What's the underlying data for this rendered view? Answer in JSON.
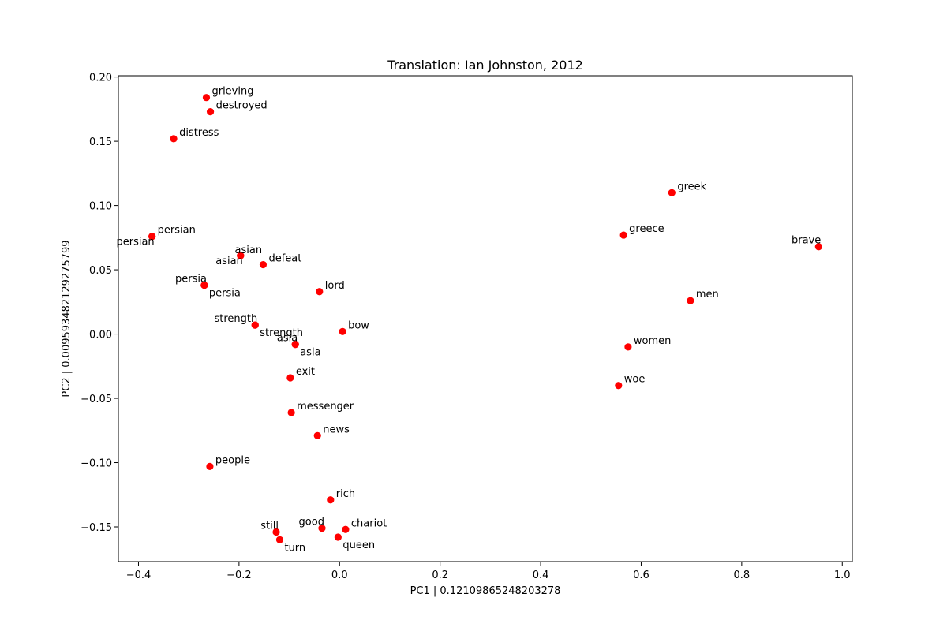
{
  "chart_data": {
    "type": "scatter",
    "title": "Translation: Ian Johnston, 2012",
    "xlabel": "PC1 | 0.12109865248203278",
    "ylabel": "PC2 | 0.009593482129275799",
    "xlim": [
      -0.44,
      1.02
    ],
    "ylim": [
      -0.177,
      0.201
    ],
    "xticks": [
      -0.4,
      -0.2,
      0.0,
      0.2,
      0.4,
      0.6,
      0.8,
      1.0
    ],
    "xtick_labels": [
      "−0.4",
      "−0.2",
      "0.0",
      "0.2",
      "0.4",
      "0.6",
      "0.8",
      "1.0"
    ],
    "yticks": [
      -0.15,
      -0.1,
      -0.05,
      0.0,
      0.05,
      0.1,
      0.15,
      0.2
    ],
    "ytick_labels": [
      "−0.15",
      "−0.10",
      "−0.05",
      "0.00",
      "0.05",
      "0.10",
      "0.15",
      "0.20"
    ],
    "grid": false,
    "marker_color": "#ff0000",
    "points": [
      {
        "label": "grieving",
        "x": -0.265,
        "y": 0.184,
        "anchor": "right"
      },
      {
        "label": "destroyed",
        "x": -0.257,
        "y": 0.173,
        "anchor": "right"
      },
      {
        "label": "distress",
        "x": -0.33,
        "y": 0.152,
        "anchor": "right"
      },
      {
        "label": "persian",
        "x": -0.373,
        "y": 0.076,
        "anchor": "right"
      },
      {
        "label": "persian",
        "x": -0.373,
        "y": 0.076,
        "anchor": "below-left"
      },
      {
        "label": "asian",
        "x": -0.197,
        "y": 0.061,
        "anchor": "above"
      },
      {
        "label": "asian",
        "x": -0.197,
        "y": 0.061,
        "anchor": "below-left"
      },
      {
        "label": "defeat",
        "x": -0.152,
        "y": 0.054,
        "anchor": "right"
      },
      {
        "label": "persia",
        "x": -0.269,
        "y": 0.038,
        "anchor": "above-left"
      },
      {
        "label": "persia",
        "x": -0.269,
        "y": 0.038,
        "anchor": "below-right"
      },
      {
        "label": "lord",
        "x": -0.04,
        "y": 0.033,
        "anchor": "right"
      },
      {
        "label": "strength",
        "x": -0.168,
        "y": 0.007,
        "anchor": "above-left"
      },
      {
        "label": "strength",
        "x": -0.168,
        "y": 0.007,
        "anchor": "below-right"
      },
      {
        "label": "bow",
        "x": 0.006,
        "y": 0.002,
        "anchor": "right"
      },
      {
        "label": "asia",
        "x": -0.088,
        "y": -0.008,
        "anchor": "above-left"
      },
      {
        "label": "asia",
        "x": -0.088,
        "y": -0.008,
        "anchor": "below-right"
      },
      {
        "label": "exit",
        "x": -0.098,
        "y": -0.034,
        "anchor": "right"
      },
      {
        "label": "messenger",
        "x": -0.096,
        "y": -0.061,
        "anchor": "right"
      },
      {
        "label": "news",
        "x": -0.044,
        "y": -0.079,
        "anchor": "right"
      },
      {
        "label": "people",
        "x": -0.258,
        "y": -0.103,
        "anchor": "right"
      },
      {
        "label": "rich",
        "x": -0.018,
        "y": -0.129,
        "anchor": "right"
      },
      {
        "label": "still",
        "x": -0.126,
        "y": -0.154,
        "anchor": "above-left"
      },
      {
        "label": "turn",
        "x": -0.119,
        "y": -0.16,
        "anchor": "below-right"
      },
      {
        "label": "good",
        "x": -0.035,
        "y": -0.151,
        "anchor": "above-left"
      },
      {
        "label": "chariot",
        "x": 0.012,
        "y": -0.152,
        "anchor": "right"
      },
      {
        "label": "queen",
        "x": -0.003,
        "y": -0.158,
        "anchor": "below-right"
      },
      {
        "label": "greek",
        "x": 0.661,
        "y": 0.11,
        "anchor": "right"
      },
      {
        "label": "greece",
        "x": 0.565,
        "y": 0.077,
        "anchor": "right"
      },
      {
        "label": "brave",
        "x": 0.953,
        "y": 0.068,
        "anchor": "above-left"
      },
      {
        "label": "men",
        "x": 0.698,
        "y": 0.026,
        "anchor": "right"
      },
      {
        "label": "women",
        "x": 0.574,
        "y": -0.01,
        "anchor": "right"
      },
      {
        "label": "woe",
        "x": 0.555,
        "y": -0.04,
        "anchor": "right"
      }
    ]
  }
}
